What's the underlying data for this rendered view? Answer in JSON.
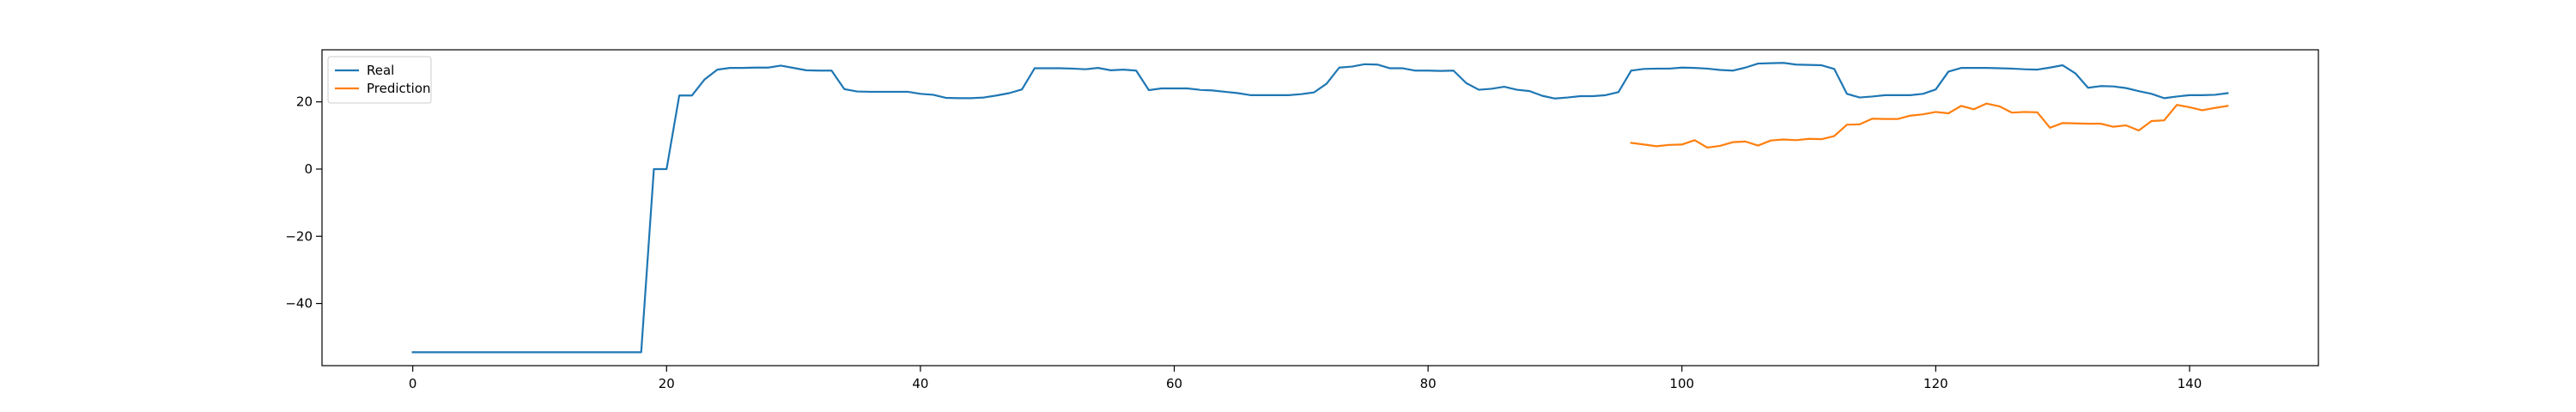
{
  "chart_data": {
    "type": "line",
    "title": "",
    "xlabel": "",
    "ylabel": "",
    "xlim": [
      -7.15,
      150.15
    ],
    "ylim": [
      -58.5,
      35.5
    ],
    "xticks": [
      0,
      20,
      40,
      60,
      80,
      100,
      120,
      140
    ],
    "yticks": [
      -40,
      -20,
      0,
      20
    ],
    "grid": false,
    "legend_position": "upper-left",
    "series": [
      {
        "name": "Real",
        "color": "#1f77b4",
        "x_start": 0,
        "values": [
          -54.5,
          -54.5,
          -54.5,
          -54.5,
          -54.5,
          -54.5,
          -54.5,
          -54.5,
          -54.5,
          -54.5,
          -54.5,
          -54.5,
          -54.5,
          -54.5,
          -54.5,
          -54.5,
          -54.5,
          -54.5,
          -54.5,
          0,
          0,
          21.9,
          21.9,
          26.7,
          29.6,
          30.1,
          30.1,
          30.2,
          30.2,
          30.8,
          30.1,
          29.4,
          29.3,
          29.3,
          23.8,
          23.1,
          23.0,
          23.0,
          23.0,
          23.0,
          22.4,
          22.1,
          21.2,
          21.1,
          21.1,
          21.3,
          21.9,
          22.6,
          23.7,
          30.0,
          30.0,
          30.0,
          29.9,
          29.7,
          30.1,
          29.4,
          29.6,
          29.3,
          23.5,
          24.0,
          24.0,
          24.0,
          23.6,
          23.4,
          23.0,
          22.6,
          22.0,
          22.0,
          22.0,
          22.0,
          22.3,
          22.8,
          25.4,
          30.2,
          30.5,
          31.2,
          31.1,
          30.0,
          30.0,
          29.3,
          29.3,
          29.2,
          29.3,
          25.6,
          23.6,
          23.9,
          24.5,
          23.6,
          23.2,
          21.8,
          21.0,
          21.3,
          21.7,
          21.7,
          22.0,
          22.9,
          29.3,
          29.8,
          29.9,
          29.9,
          30.2,
          30.1,
          29.9,
          29.5,
          29.3,
          30.2,
          31.4,
          31.5,
          31.6,
          31.1,
          31.0,
          30.9,
          29.8,
          22.4,
          21.3,
          21.6,
          22.0,
          22.0,
          22.0,
          22.4,
          23.7,
          29.0,
          30.1,
          30.1,
          30.1,
          30.0,
          29.9,
          29.7,
          29.6,
          30.2,
          30.9,
          28.5,
          24.2,
          24.7,
          24.6,
          24.1,
          23.2,
          22.4,
          21.1,
          21.6,
          22.0,
          22.0,
          22.1,
          22.6
        ]
      },
      {
        "name": "Prediction",
        "color": "#ff7f0e",
        "x_start": 96,
        "values": [
          7.8,
          7.3,
          6.8,
          7.2,
          7.3,
          8.6,
          6.4,
          6.9,
          8.0,
          8.2,
          7.0,
          8.5,
          8.8,
          8.6,
          9.0,
          8.9,
          9.8,
          13.2,
          13.3,
          15.0,
          14.9,
          14.9,
          15.9,
          16.3,
          17.0,
          16.6,
          18.8,
          17.8,
          19.5,
          18.7,
          16.8,
          17.0,
          16.9,
          12.3,
          13.7,
          13.6,
          13.5,
          13.5,
          12.6,
          13.0,
          11.5,
          14.3,
          14.5,
          19.1,
          18.4,
          17.5,
          18.2,
          18.8
        ]
      }
    ]
  }
}
